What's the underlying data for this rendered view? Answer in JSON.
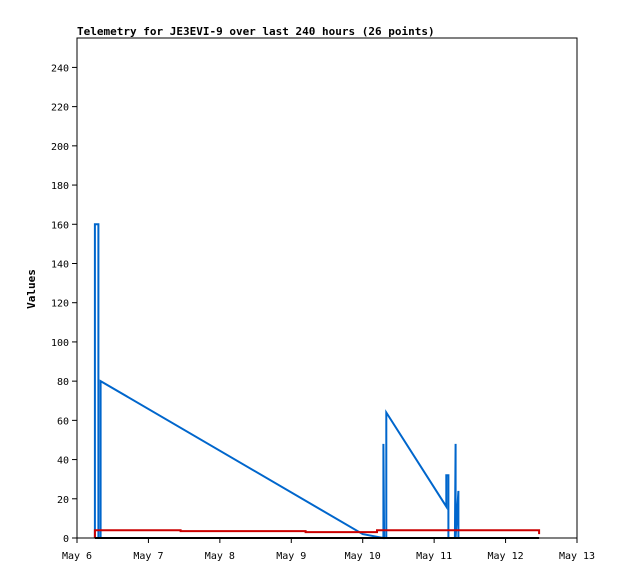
{
  "chart_data": {
    "type": "line",
    "title": "Telemetry for JE3EVI-9 over last 240 hours (26 points)",
    "xlabel": "",
    "ylabel": "Values",
    "x_ticks": [
      "May 6",
      "May 7",
      "May 8",
      "May 9",
      "May 10",
      "May 11",
      "May 12",
      "May 13"
    ],
    "xlim": [
      0,
      7
    ],
    "ylim": [
      0,
      255
    ],
    "y_ticks": [
      0,
      20,
      40,
      60,
      80,
      100,
      120,
      140,
      160,
      180,
      200,
      220,
      240
    ],
    "grid": false,
    "series": [
      {
        "color": "#0066cc",
        "x": [
          0.25,
          0.25,
          0.3,
          0.3,
          0.33,
          0.33,
          4.0,
          4.29,
          4.29,
          4.3,
          4.33,
          4.33,
          5.17,
          5.17,
          5.2,
          5.2,
          5.29,
          5.3,
          5.3,
          5.34,
          5.34
        ],
        "y": [
          0,
          160,
          160,
          0,
          0,
          80,
          2,
          0,
          48,
          0,
          0,
          64,
          16,
          32,
          32,
          0,
          0,
          48,
          0,
          24,
          0
        ]
      },
      {
        "color": "#cc0000",
        "x": [
          0.25,
          0.25,
          0.35,
          1.45,
          1.45,
          3.2,
          3.2,
          4.2,
          4.2,
          6.47,
          6.47
        ],
        "y": [
          0,
          4,
          4,
          4,
          3.5,
          3.5,
          3,
          3,
          4,
          4,
          2
        ]
      },
      {
        "color": "#000000",
        "x": [
          0.25,
          6.47
        ],
        "y": [
          0,
          0
        ]
      }
    ]
  }
}
